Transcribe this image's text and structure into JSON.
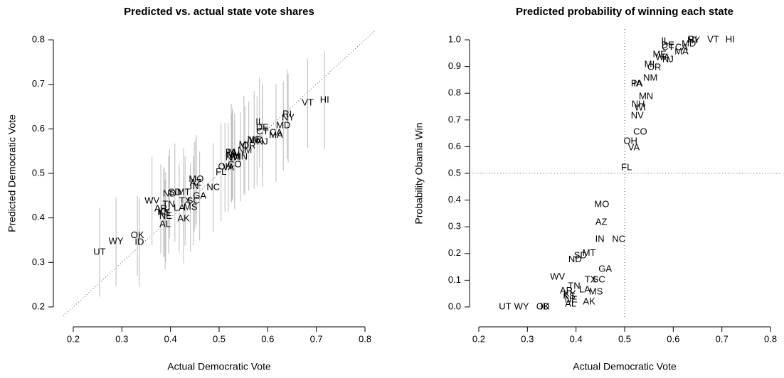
{
  "chart_data": [
    {
      "type": "scatter",
      "title": "Predicted vs. actual state vote shares",
      "x_label": "Actual Democratic Vote",
      "y_label": "Predicted Democratic Vote",
      "xlim": [
        0.18,
        0.82
      ],
      "ylim": [
        0.18,
        0.82
      ],
      "xticks": [
        0.2,
        0.3,
        0.4,
        0.5,
        0.6,
        0.7,
        0.8
      ],
      "yticks": [
        0.2,
        0.3,
        0.4,
        0.5,
        0.6,
        0.7,
        0.8
      ],
      "diagonal": true,
      "error_color": "#bbbbbb",
      "labels": [
        "UT",
        "WY",
        "OK",
        "ID",
        "WV",
        "AR",
        "KY",
        "TN",
        "NE",
        "AL",
        "KS",
        "ND",
        "SD",
        "MT",
        "LA",
        "TX",
        "SC",
        "MS",
        "AK",
        "GA",
        "IN",
        "MO",
        "AZ",
        "NC",
        "FL",
        "OH",
        "VA",
        "CO",
        "NV",
        "WI",
        "NH",
        "MN",
        "PA",
        "IA",
        "NM",
        "MI",
        "OR",
        "ME",
        "WA",
        "NJ",
        "MA",
        "CA",
        "DE",
        "CT",
        "IL",
        "MD",
        "NY",
        "RI",
        "VT",
        "HI"
      ],
      "x": [
        0.254,
        0.288,
        0.332,
        0.336,
        0.362,
        0.38,
        0.387,
        0.396,
        0.39,
        0.389,
        0.386,
        0.398,
        0.409,
        0.427,
        0.418,
        0.43,
        0.447,
        0.441,
        0.427,
        0.46,
        0.449,
        0.453,
        0.452,
        0.488,
        0.504,
        0.512,
        0.519,
        0.532,
        0.526,
        0.532,
        0.528,
        0.544,
        0.525,
        0.527,
        0.553,
        0.551,
        0.561,
        0.572,
        0.578,
        0.589,
        0.617,
        0.617,
        0.589,
        0.589,
        0.583,
        0.632,
        0.642,
        0.64,
        0.682,
        0.717
      ],
      "values": [
        0.323,
        0.347,
        0.36,
        0.345,
        0.438,
        0.42,
        0.414,
        0.43,
        0.403,
        0.385,
        0.411,
        0.454,
        0.457,
        0.457,
        0.422,
        0.438,
        0.438,
        0.423,
        0.398,
        0.449,
        0.47,
        0.486,
        0.478,
        0.468,
        0.502,
        0.514,
        0.513,
        0.519,
        0.535,
        0.535,
        0.54,
        0.537,
        0.546,
        0.546,
        0.551,
        0.564,
        0.561,
        0.575,
        0.573,
        0.57,
        0.585,
        0.591,
        0.602,
        0.593,
        0.615,
        0.607,
        0.624,
        0.632,
        0.658,
        0.664
      ],
      "errors": [
        0.1,
        0.1,
        0.09,
        0.1,
        0.1,
        0.1,
        0.1,
        0.11,
        0.1,
        0.1,
        0.1,
        0.1,
        0.11,
        0.1,
        0.1,
        0.1,
        0.1,
        0.1,
        0.1,
        0.1,
        0.1,
        0.1,
        0.1,
        0.1,
        0.11,
        0.1,
        0.1,
        0.1,
        0.1,
        0.1,
        0.1,
        0.1,
        0.11,
        0.1,
        0.1,
        0.11,
        0.1,
        0.11,
        0.1,
        0.1,
        0.1,
        0.11,
        0.1,
        0.1,
        0.1,
        0.1,
        0.1,
        0.1,
        0.1,
        0.11
      ]
    },
    {
      "type": "scatter",
      "title": "Predicted probability of winning each state",
      "x_label": "Actual Democratic Vote",
      "y_label": "Probability Obama Win",
      "xlim": [
        0.18,
        0.82
      ],
      "ylim": [
        -0.04,
        1.04
      ],
      "xticks": [
        0.2,
        0.3,
        0.4,
        0.5,
        0.6,
        0.7,
        0.8
      ],
      "yticks": [
        {
          "value": 0,
          "label": "0.0"
        },
        0.1,
        0.2,
        0.3,
        0.4,
        0.5,
        0.6,
        0.7,
        0.8,
        0.9,
        {
          "value": 1,
          "label": "1.0"
        }
      ],
      "reference_lines": {
        "x": 0.5,
        "y": 0.5
      },
      "labels": [
        "UT",
        "WY",
        "OK",
        "ID",
        "WV",
        "AR",
        "KY",
        "TN",
        "NE",
        "AL",
        "KS",
        "ND",
        "SD",
        "MT",
        "LA",
        "TX",
        "SC",
        "MS",
        "AK",
        "GA",
        "IN",
        "MO",
        "AZ",
        "NC",
        "FL",
        "OH",
        "VA",
        "CO",
        "NV",
        "WI",
        "NH",
        "MN",
        "PA",
        "IA",
        "NM",
        "MI",
        "OR",
        "ME",
        "WA",
        "NJ",
        "MA",
        "CA",
        "DE",
        "CT",
        "IL",
        "MD",
        "NY",
        "RI",
        "VT",
        "HI"
      ],
      "x": [
        0.254,
        0.288,
        0.332,
        0.336,
        0.362,
        0.38,
        0.387,
        0.396,
        0.39,
        0.389,
        0.386,
        0.398,
        0.409,
        0.427,
        0.418,
        0.43,
        0.447,
        0.441,
        0.427,
        0.46,
        0.449,
        0.453,
        0.452,
        0.488,
        0.504,
        0.512,
        0.519,
        0.532,
        0.526,
        0.532,
        0.528,
        0.544,
        0.525,
        0.527,
        0.553,
        0.551,
        0.561,
        0.572,
        0.578,
        0.589,
        0.617,
        0.617,
        0.589,
        0.589,
        0.583,
        0.632,
        0.642,
        0.64,
        0.682,
        0.717
      ],
      "values": [
        0,
        0,
        0,
        0,
        0.112,
        0.059,
        0.048,
        0.077,
        0.027,
        0.011,
        0.04,
        0.176,
        0.191,
        0.2,
        0.064,
        0.101,
        0.101,
        0.056,
        0.019,
        0.141,
        0.253,
        0.383,
        0.316,
        0.253,
        0.521,
        0.62,
        0.596,
        0.654,
        0.715,
        0.745,
        0.758,
        0.787,
        0.835,
        0.835,
        0.856,
        0.907,
        0.896,
        0.944,
        0.934,
        0.926,
        0.955,
        0.971,
        0.979,
        0.971,
        0.995,
        0.984,
        0.997,
        1,
        1,
        1
      ]
    }
  ]
}
